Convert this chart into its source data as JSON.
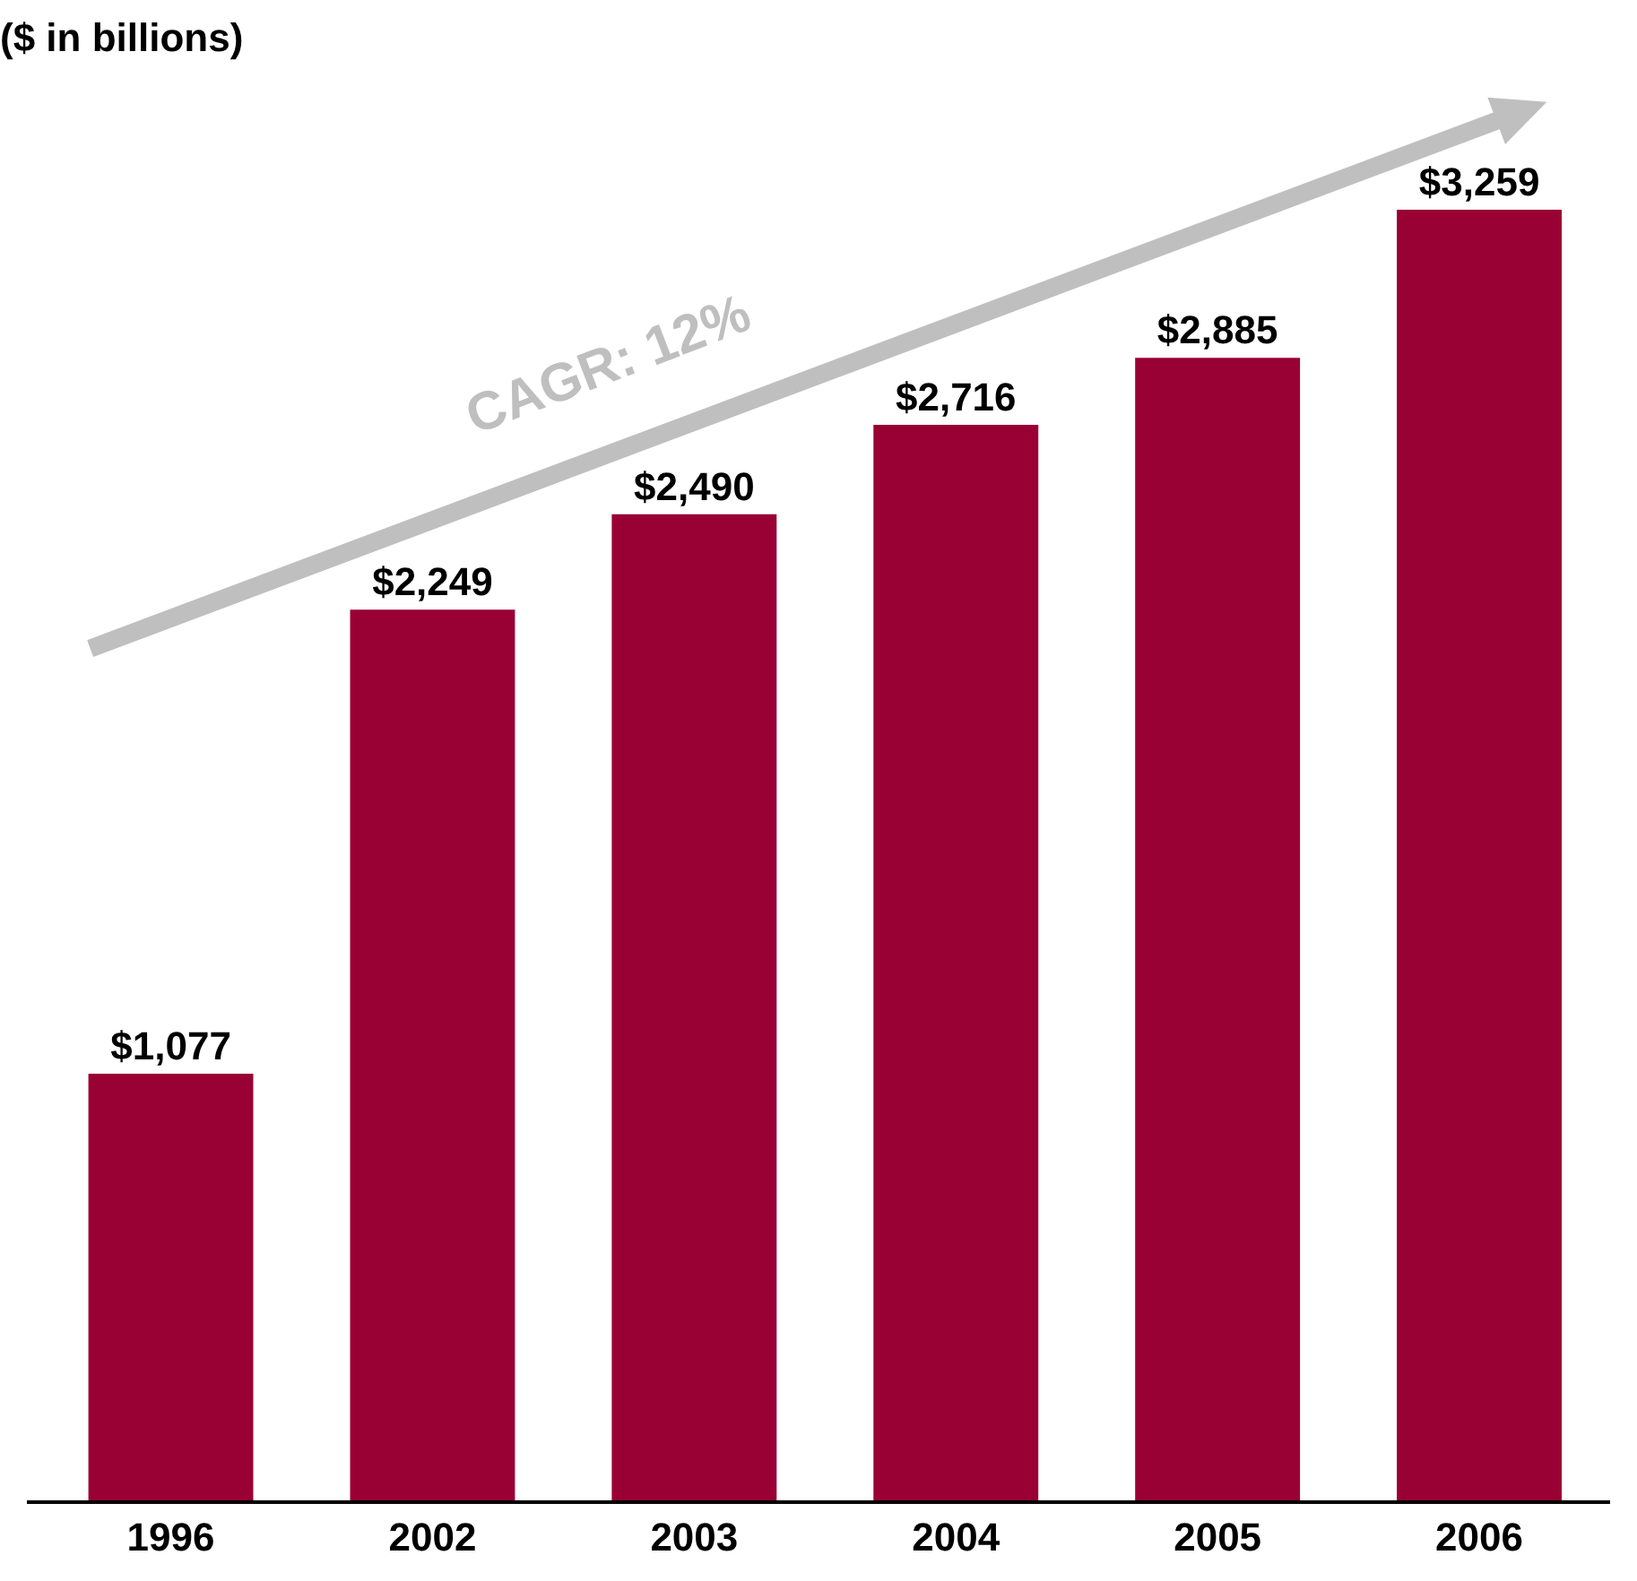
{
  "chart_data": {
    "type": "bar",
    "title": "($ in billions)",
    "categories": [
      "1996",
      "2002",
      "2003",
      "2004",
      "2005",
      "2006"
    ],
    "values": [
      1077,
      2249,
      2490,
      2716,
      2885,
      3259
    ],
    "value_labels": [
      "$1,077",
      "$2,249",
      "$2,490",
      "$2,716",
      "$2,885",
      "$3,259"
    ],
    "color": "#990033",
    "annotations": [
      "CAGR: 12%"
    ],
    "legend": false
  }
}
